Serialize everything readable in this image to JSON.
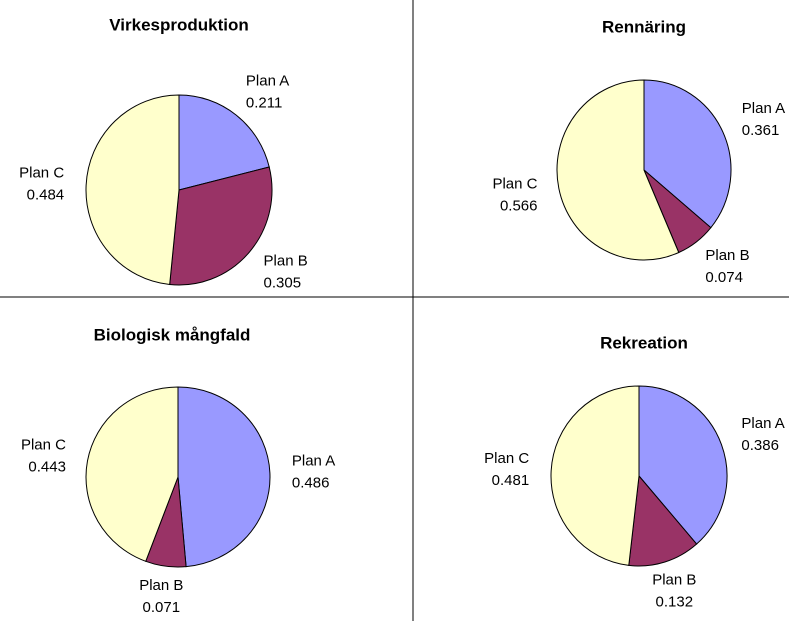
{
  "chart_data": [
    {
      "type": "pie",
      "title": "Virkesproduktion",
      "categories": [
        "Plan A",
        "Plan B",
        "Plan C"
      ],
      "values": [
        0.211,
        0.305,
        0.484
      ],
      "colors": [
        "#9999ff",
        "#993366",
        "#ffffcc"
      ]
    },
    {
      "type": "pie",
      "title": "Rennäring",
      "categories": [
        "Plan A",
        "Plan B",
        "Plan C"
      ],
      "values": [
        0.361,
        0.074,
        0.566
      ],
      "colors": [
        "#9999ff",
        "#993366",
        "#ffffcc"
      ]
    },
    {
      "type": "pie",
      "title": "Biologisk mångfald",
      "categories": [
        "Plan A",
        "Plan B",
        "Plan C"
      ],
      "values": [
        0.486,
        0.071,
        0.443
      ],
      "colors": [
        "#9999ff",
        "#993366",
        "#ffffcc"
      ]
    },
    {
      "type": "pie",
      "title": "Rekreation",
      "categories": [
        "Plan A",
        "Plan B",
        "Plan C"
      ],
      "values": [
        0.386,
        0.132,
        0.481
      ],
      "colors": [
        "#9999ff",
        "#993366",
        "#ffffcc"
      ]
    }
  ]
}
